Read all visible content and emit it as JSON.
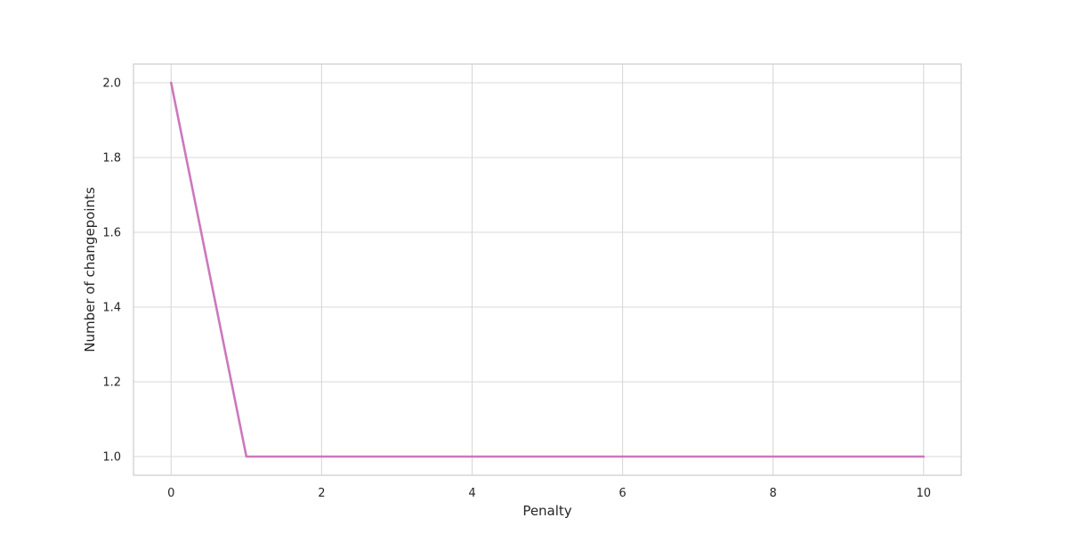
{
  "chart_data": {
    "type": "line",
    "title": "",
    "xlabel": "Penalty",
    "ylabel": "Number of changepoints",
    "xlim": [
      -0.5,
      10.5
    ],
    "ylim": [
      0.95,
      2.05
    ],
    "xticks": [
      0,
      2,
      4,
      6,
      8,
      10
    ],
    "yticks": [
      1.0,
      1.2,
      1.4,
      1.6,
      1.8,
      2.0
    ],
    "xtick_labels": [
      "0",
      "2",
      "4",
      "6",
      "8",
      "10"
    ],
    "ytick_labels": [
      "1.0",
      "1.2",
      "1.4",
      "1.6",
      "1.8",
      "2.0"
    ],
    "grid": true,
    "legend": "none",
    "series": [
      {
        "color": "#cc78bc",
        "x": [
          0,
          1,
          2,
          3,
          4,
          5,
          6,
          7,
          8,
          9,
          10
        ],
        "y": [
          2,
          1,
          1,
          1,
          1,
          1,
          1,
          1,
          1,
          1,
          1
        ]
      }
    ]
  }
}
